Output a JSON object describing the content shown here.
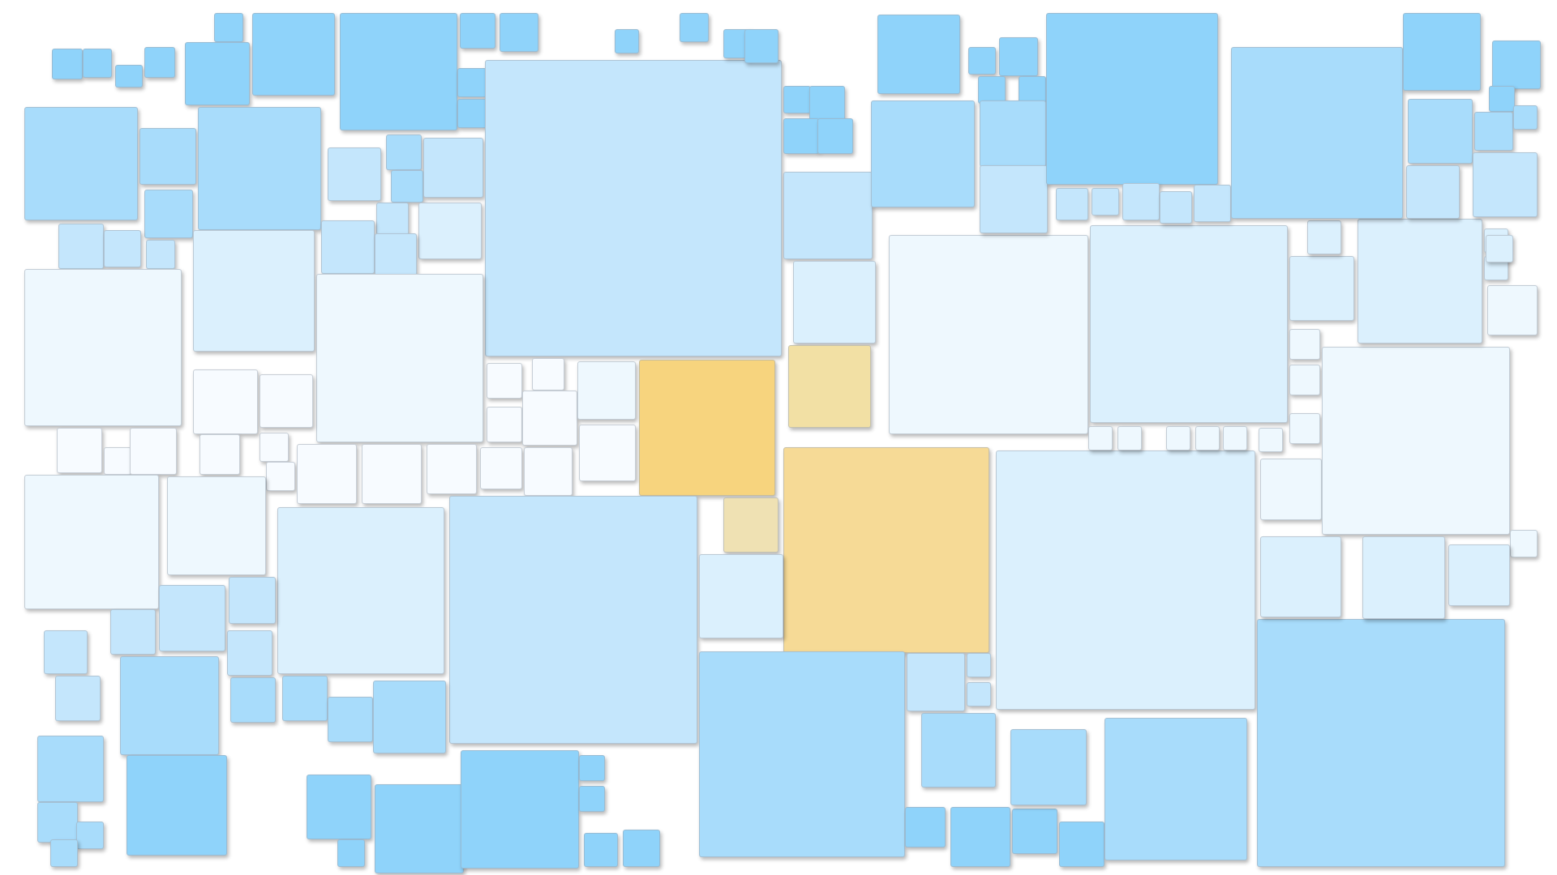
{
  "background": "#ffffff",
  "palette": {
    "sky_deep": "#8fd3fa",
    "sky": "#a8dcfb",
    "sky_light": "#c4e6fc",
    "sky_pale": "#dbf0fd",
    "sky_faint": "#eef8fe",
    "sky_white": "#f7fbff",
    "gold": "#f7d47e",
    "gold_light": "#f6da96",
    "gold_pale": "#f2e0a4",
    "gold_faint": "#efe1b3"
  }
}
